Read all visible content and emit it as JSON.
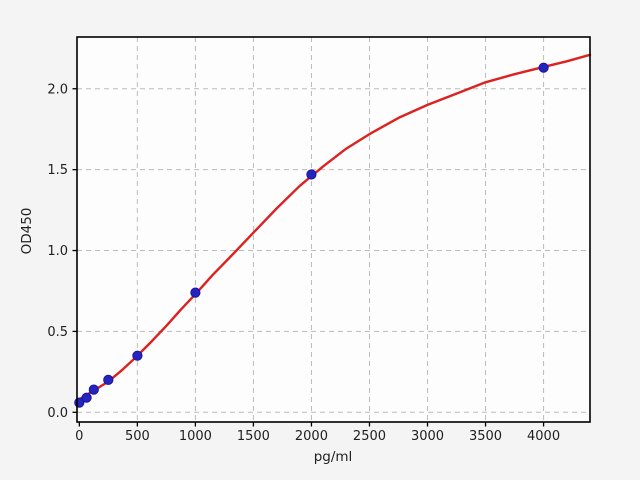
{
  "figure": {
    "background_color": "#f4f4f5",
    "plot_background_color": "#fdfdfd"
  },
  "chart_data": {
    "type": "scatter",
    "title": "",
    "xlabel": "pg/ml",
    "ylabel": "OD450",
    "xlim": [
      -20,
      4400
    ],
    "ylim": [
      -0.06,
      2.32
    ],
    "grid": "dashed",
    "legend": "none",
    "x_ticks": [
      0,
      500,
      1000,
      1500,
      2000,
      2500,
      3000,
      3500,
      4000
    ],
    "x_tick_labels": [
      "0",
      "500",
      "1000",
      "1500",
      "2000",
      "2500",
      "3000",
      "3500",
      "4000"
    ],
    "y_ticks": [
      0.0,
      0.5,
      1.0,
      1.5,
      2.0
    ],
    "y_tick_labels": [
      "0.0",
      "0.5",
      "1.0",
      "1.5",
      "2.0"
    ],
    "colors": {
      "curve": "#dd2020",
      "marker_fill": "#2525bd",
      "marker_edge": "#1515a0",
      "grid": "#bbbbbb",
      "spine": "#000000",
      "tick_text": "#1f1f1f"
    },
    "series": [
      {
        "name": "4PL fit curve",
        "type": "line",
        "x": [
          -20,
          0,
          125,
          250,
          375,
          500,
          625,
          750,
          875,
          1000,
          1150,
          1300,
          1500,
          1700,
          1900,
          2100,
          2300,
          2500,
          2750,
          3000,
          3250,
          3500,
          3750,
          4000,
          4200,
          4400
        ],
        "y": [
          0.075,
          0.08,
          0.135,
          0.19,
          0.265,
          0.35,
          0.44,
          0.535,
          0.635,
          0.73,
          0.85,
          0.96,
          1.11,
          1.26,
          1.4,
          1.52,
          1.63,
          1.72,
          1.82,
          1.9,
          1.97,
          2.04,
          2.09,
          2.135,
          2.17,
          2.21
        ]
      },
      {
        "name": "standard data points",
        "type": "scatter",
        "x": [
          0,
          62.5,
          125,
          250,
          500,
          1000,
          2000,
          4000
        ],
        "y": [
          0.06,
          0.09,
          0.14,
          0.2,
          0.35,
          0.74,
          1.47,
          2.13
        ]
      }
    ]
  }
}
